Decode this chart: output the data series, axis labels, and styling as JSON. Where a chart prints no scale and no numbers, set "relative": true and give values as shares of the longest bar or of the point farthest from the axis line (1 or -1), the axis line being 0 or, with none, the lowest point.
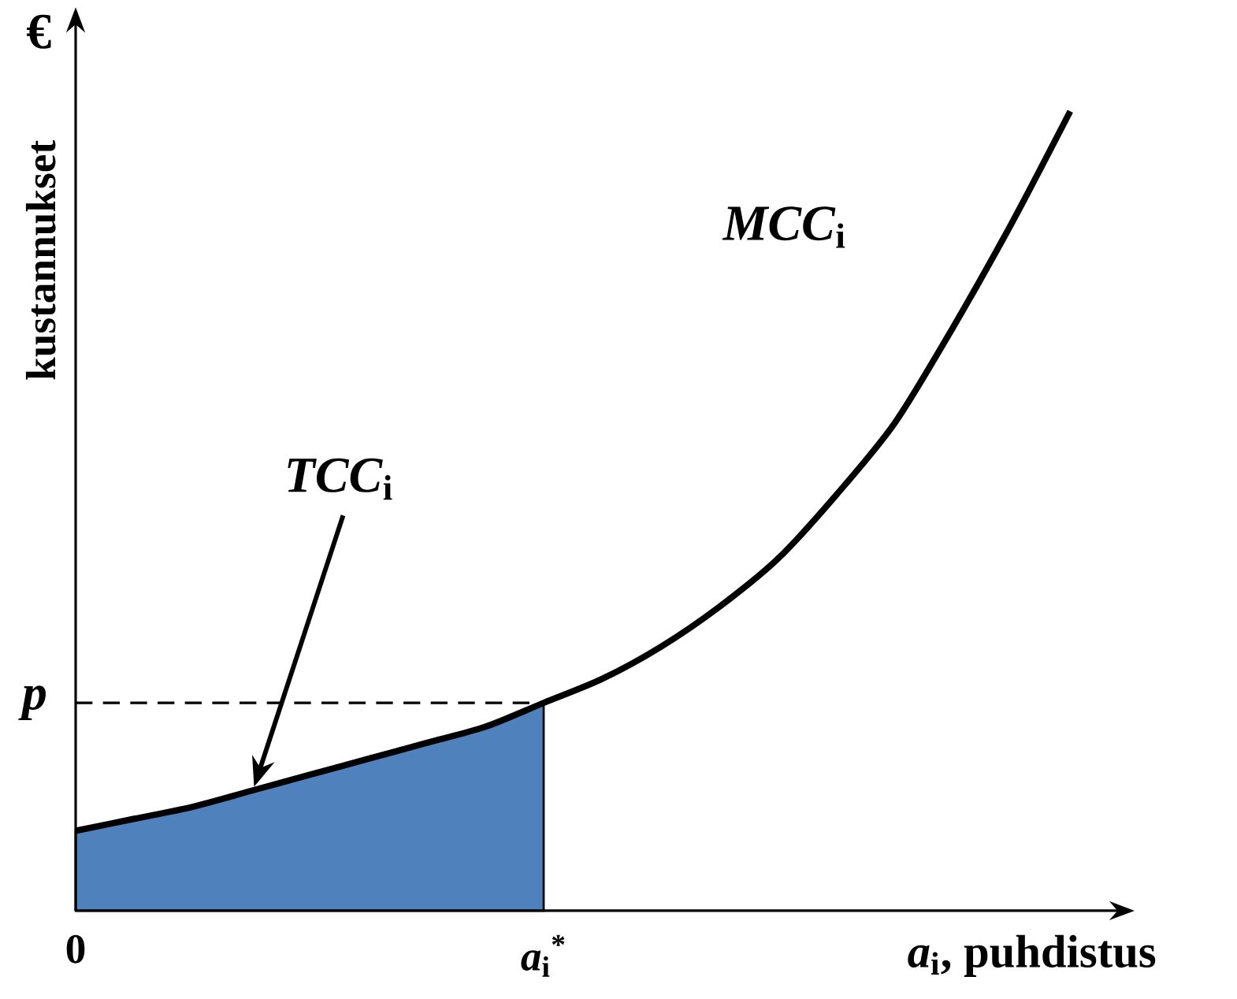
{
  "chart_data": {
    "type": "line",
    "relative": true,
    "categories": [
      "0",
      null,
      null,
      null,
      null,
      null,
      null,
      null,
      "*a*$_{i}$$^{*}$",
      null,
      null,
      null,
      null,
      null,
      null,
      null,
      null,
      null
    ],
    "xlabel": "*a*$_{i}$, puhdistus",
    "ylabel": "kustannukset",
    "annotations": [
      "€",
      "*TCC*$_{i}$"
    ],
    "series": [
      {
        "name": "*MCC*$_{i}$",
        "color": "#000000",
        "values": [
          0.1,
          0.115,
          0.13,
          0.15,
          0.17,
          0.19,
          0.21,
          0.23,
          0.26,
          0.29,
          0.33,
          0.38,
          0.44,
          0.52,
          0.61,
          0.73,
          0.86,
          1
        ]
      },
      {
        "type": "area",
        "color": "#4f81bd",
        "values": [
          0.1,
          0.115,
          0.13,
          0.15,
          0.17,
          0.19,
          0.21,
          0.23,
          0.26,
          null,
          null,
          null,
          null,
          null,
          null,
          null,
          null,
          null
        ]
      }
    ],
    "ref_lines": [
      {
        "axis": "y",
        "value": 0.26,
        "label": "p",
        "line_style": "dashed"
      }
    ]
  }
}
